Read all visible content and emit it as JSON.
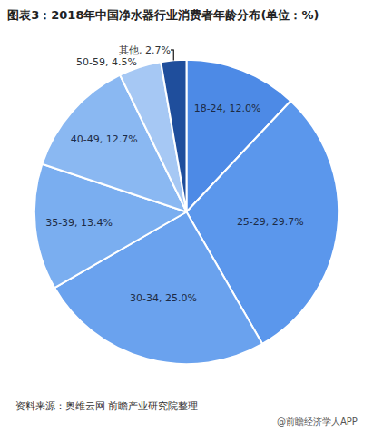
{
  "chart_data": {
    "type": "pie",
    "title": "图表3：2018年中国净水器行业消费者年龄分布(单位：%)",
    "categories": [
      "18-24",
      "25-29",
      "30-34",
      "35-39",
      "40-49",
      "50-59",
      "其他"
    ],
    "values": [
      12.0,
      29.7,
      25.0,
      13.4,
      12.7,
      4.5,
      2.7
    ],
    "value_labels": [
      "18-24, 12.0%",
      "25-29, 29.7%",
      "30-34, 25.0%",
      "35-39, 13.4%",
      "40-49, 12.7%",
      "50-59, 4.5%",
      "其他, 2.7%"
    ],
    "colors": [
      "#4d8ae6",
      "#5b97ec",
      "#6aa2ee",
      "#7aaef0",
      "#8ab8f2",
      "#a6c8f4",
      "#1f4e9c"
    ],
    "data_labels": true,
    "annotations": [
      "资料来源：奥维云网 前瞻产业研究院整理",
      "@前瞻经济学人APP"
    ]
  }
}
